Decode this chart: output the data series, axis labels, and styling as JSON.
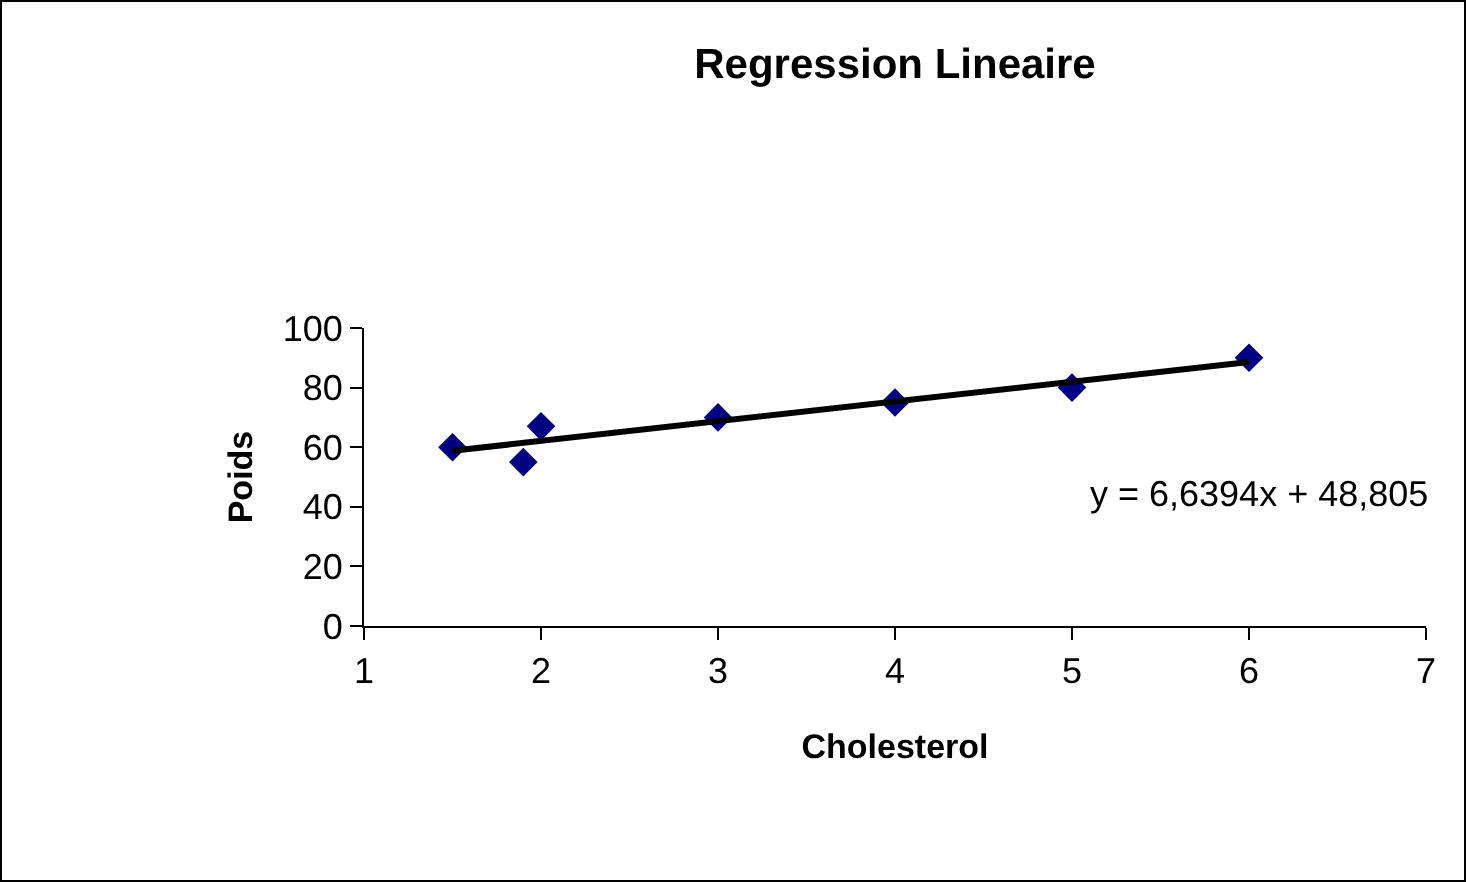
{
  "chart_data": {
    "type": "scatter",
    "title": "Regression Lineaire",
    "xlabel": "Cholesterol",
    "ylabel": "Poids",
    "xlim": [
      1,
      7
    ],
    "xticks": [
      1,
      2,
      3,
      4,
      5,
      6,
      7
    ],
    "ylim": [
      0,
      100
    ],
    "yticks": [
      0,
      20,
      40,
      60,
      80,
      100
    ],
    "grid": false,
    "marker": "diamond",
    "series": [
      {
        "color": "#000080",
        "x": [
          1.5,
          1.9,
          2,
          3,
          4,
          5,
          6
        ],
        "values": [
          60,
          55,
          67,
          70,
          75,
          80,
          90
        ]
      },
      {
        "type": "line",
        "color": "#000000",
        "x": [
          1.5,
          6
        ],
        "values": [
          58.8,
          88.6
        ],
        "line_style": "solid",
        "marker": "none"
      }
    ],
    "annotations": [
      "y = 6,6394x + 48,805"
    ]
  }
}
